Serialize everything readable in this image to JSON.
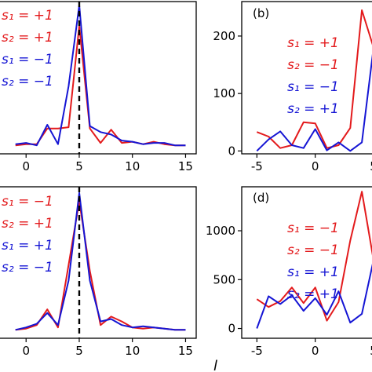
{
  "colors": {
    "red": "#e31a1c",
    "blue": "#1515d4",
    "axis": "#000000"
  },
  "chart_data": [
    {
      "id": "a",
      "type": "line",
      "panel_label": "",
      "xlabel": "",
      "ylabel": "",
      "xlim": [
        -2.6,
        16
      ],
      "ylim": [
        -0.06,
        1.2
      ],
      "xticks": [
        0,
        5,
        10,
        15
      ],
      "xtick_labels": [
        "0",
        "5",
        "10",
        "15"
      ],
      "yticks": [],
      "ytick_labels": [],
      "vline": 5,
      "legend": [
        {
          "text": "s₁ = +1",
          "color": "red"
        },
        {
          "text": "s₂ = +1",
          "color": "red"
        },
        {
          "text": "s₁ = −1",
          "color": "blue"
        },
        {
          "text": "s₂ = −1",
          "color": "blue"
        }
      ],
      "series": [
        {
          "color": "red",
          "x": [
            -1,
            0,
            1,
            2,
            3,
            4,
            5,
            6,
            7,
            8,
            9,
            10,
            11,
            12,
            13,
            14,
            15
          ],
          "y": [
            0.01,
            0.02,
            0.02,
            0.15,
            0.15,
            0.16,
            1.0,
            0.15,
            0.03,
            0.14,
            0.03,
            0.04,
            0.02,
            0.04,
            0.02,
            0.01,
            0.01
          ]
        },
        {
          "color": "blue",
          "x": [
            -1,
            0,
            1,
            2,
            3,
            4,
            5,
            6,
            7,
            8,
            9,
            10,
            11,
            12,
            13,
            14,
            15
          ],
          "y": [
            0.02,
            0.03,
            0.01,
            0.18,
            0.02,
            0.5,
            1.17,
            0.17,
            0.12,
            0.1,
            0.05,
            0.04,
            0.02,
            0.03,
            0.03,
            0.01,
            0.01
          ]
        }
      ]
    },
    {
      "id": "b",
      "type": "line",
      "panel_label": "(b)",
      "xlabel": "",
      "ylabel": "",
      "xlim": [
        -6.3,
        5.0
      ],
      "ylim": [
        -5,
        260
      ],
      "xticks": [
        -5,
        0,
        5
      ],
      "xtick_labels": [
        "-5",
        "0",
        "5"
      ],
      "yticks": [
        0,
        100,
        200
      ],
      "ytick_labels": [
        "0",
        "100",
        "200"
      ],
      "vline": 5,
      "legend": [
        {
          "text": "s₁ = +1",
          "color": "red"
        },
        {
          "text": "s₂ = −1",
          "color": "red"
        },
        {
          "text": "s₁ = −1",
          "color": "blue"
        },
        {
          "text": "s₂ = +1",
          "color": "blue"
        }
      ],
      "series": [
        {
          "color": "red",
          "x": [
            -5,
            -4,
            -3,
            -2,
            -1,
            0,
            1,
            2,
            3,
            4,
            5
          ],
          "y": [
            33,
            25,
            5,
            10,
            50,
            48,
            5,
            10,
            40,
            245,
            180
          ]
        },
        {
          "color": "blue",
          "x": [
            -5,
            -4,
            -3,
            -2,
            -1,
            0,
            1,
            2,
            3,
            4,
            5
          ],
          "y": [
            0,
            20,
            34,
            10,
            5,
            38,
            1,
            15,
            0,
            15,
            180
          ]
        }
      ]
    },
    {
      "id": "c",
      "type": "line",
      "panel_label": "",
      "xlabel": "",
      "ylabel": "",
      "xlim": [
        -2.6,
        16
      ],
      "ylim": [
        -0.06,
        1.2
      ],
      "xticks": [
        0,
        5,
        10,
        15
      ],
      "xtick_labels": [
        "0",
        "5",
        "10",
        "15"
      ],
      "yticks": [],
      "ytick_labels": [],
      "vline": 5,
      "legend": [
        {
          "text": "s₁ = −1",
          "color": "red"
        },
        {
          "text": "s₂ = +1",
          "color": "red"
        },
        {
          "text": "s₁ = +1",
          "color": "blue"
        },
        {
          "text": "s₂ = −1",
          "color": "blue"
        }
      ],
      "series": [
        {
          "color": "red",
          "x": [
            -1,
            0,
            1,
            2,
            3,
            4,
            5,
            6,
            7,
            8,
            9,
            10,
            11,
            12,
            13,
            14,
            15
          ],
          "y": [
            0.01,
            0.02,
            0.05,
            0.18,
            0.03,
            0.55,
            1.08,
            0.5,
            0.05,
            0.12,
            0.08,
            0.03,
            0.02,
            0.03,
            0.02,
            0.01,
            0.01
          ]
        },
        {
          "color": "blue",
          "x": [
            -1,
            0,
            1,
            2,
            3,
            4,
            5,
            6,
            7,
            8,
            9,
            10,
            11,
            12,
            13,
            14,
            15
          ],
          "y": [
            0.01,
            0.03,
            0.06,
            0.15,
            0.05,
            0.42,
            1.15,
            0.42,
            0.08,
            0.1,
            0.05,
            0.03,
            0.04,
            0.03,
            0.02,
            0.01,
            0.01
          ]
        }
      ]
    },
    {
      "id": "d",
      "type": "line",
      "panel_label": "(d)",
      "xlabel": "l",
      "ylabel": "",
      "xlim": [
        -6.3,
        5.0
      ],
      "ylim": [
        -100,
        1450
      ],
      "xticks": [
        -5,
        0,
        5
      ],
      "xtick_labels": [
        "-5",
        "0",
        "5"
      ],
      "yticks": [
        0,
        500,
        1000
      ],
      "ytick_labels": [
        "0",
        "500",
        "1000"
      ],
      "vline": 5,
      "legend": [
        {
          "text": "s₁ = −1",
          "color": "red"
        },
        {
          "text": "s₂ = −1",
          "color": "red"
        },
        {
          "text": "s₁ = +1",
          "color": "blue"
        },
        {
          "text": "s₂ = +1",
          "color": "blue"
        }
      ],
      "series": [
        {
          "color": "red",
          "x": [
            -5,
            -4,
            -3,
            -2,
            -1,
            0,
            1,
            2,
            3,
            4,
            5
          ],
          "y": [
            300,
            220,
            280,
            420,
            260,
            420,
            80,
            270,
            900,
            1400,
            700
          ]
        },
        {
          "color": "blue",
          "x": [
            -5,
            -4,
            -3,
            -2,
            -1,
            0,
            1,
            2,
            3,
            4,
            5
          ],
          "y": [
            0,
            330,
            250,
            340,
            180,
            310,
            140,
            380,
            60,
            150,
            700
          ]
        }
      ]
    }
  ]
}
